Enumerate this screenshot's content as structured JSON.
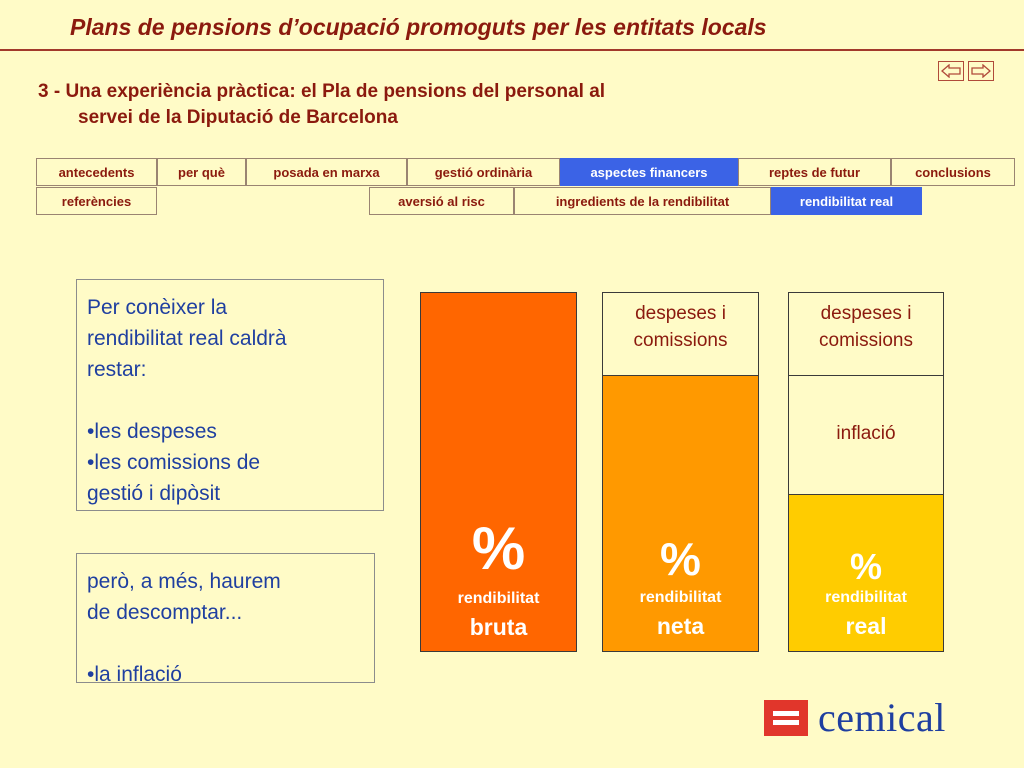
{
  "header": {
    "title": "Plans de pensions d’ocupació promoguts per les entitats locals",
    "section_line1": "3 - Una experiència pràctica: el Pla de pensions del personal al",
    "section_line2": "servei de la Diputació de Barcelona"
  },
  "nav": {
    "back_icon": "arrow-left-icon",
    "forward_icon": "arrow-right-icon"
  },
  "tabs_row1": [
    {
      "label": "antecedents",
      "active": false
    },
    {
      "label": "per què",
      "active": false
    },
    {
      "label": "posada en marxa",
      "active": false
    },
    {
      "label": "gestió ordinària",
      "active": false
    },
    {
      "label": "aspectes financers",
      "active": true
    },
    {
      "label": "reptes de futur",
      "active": false
    },
    {
      "label": "conclusions",
      "active": false
    }
  ],
  "tabs_row2": [
    {
      "label": "referències",
      "active": false
    },
    {
      "label": "aversió al risc",
      "active": false
    },
    {
      "label": "ingredients de la rendibilitat",
      "active": false
    },
    {
      "label": "rendibilitat real",
      "active": true
    }
  ],
  "box1": {
    "line1": "Per conèixer la",
    "line2": "rendibilitat real caldrà",
    "line3": "restar:",
    "bullet1": "•les despeses",
    "bullet2a": "•les comissions de",
    "bullet2b": "gestió i dipòsit"
  },
  "box2": {
    "line1": "però, a més, haurem",
    "line2": "de descomptar...",
    "bullet1": "•la inflació"
  },
  "bars": {
    "bruta": {
      "pct": "%",
      "sub": "rendibilitat",
      "big": "bruta"
    },
    "neta": {
      "top_line1": "despeses i",
      "top_line2": "comissions",
      "pct": "%",
      "sub": "rendibilitat",
      "big": "neta"
    },
    "real": {
      "top_line1": "despeses i",
      "top_line2": "comissions",
      "mid": "inflació",
      "pct": "%",
      "sub": "rendibilitat",
      "big": "real"
    }
  },
  "colors": {
    "background": "#FFFBC7",
    "title": "#8B1A0E",
    "active_tab": "#3B63E6",
    "bar_bruta": "#FF6600",
    "bar_neta": "#FF9900",
    "bar_real": "#FFCC00",
    "body_text": "#1F3FA0"
  },
  "logo": {
    "text": "cemical"
  }
}
